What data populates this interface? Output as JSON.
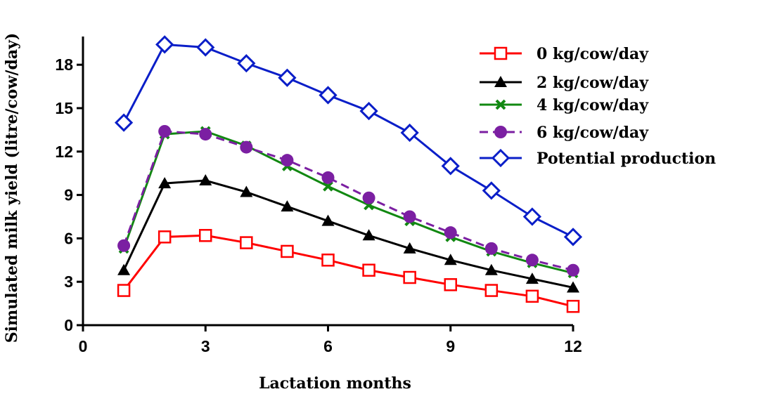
{
  "chart_data": {
    "type": "line",
    "xlabel": "Lactation months",
    "ylabel": "Simulated milk yield (litre/cow/day)",
    "xlim": [
      0,
      12
    ],
    "ylim": [
      0,
      20
    ],
    "x_ticks": [
      "0",
      "3",
      "6",
      "9",
      "12"
    ],
    "y_ticks": [
      "0",
      "3",
      "6",
      "9",
      "12",
      "15",
      "18"
    ],
    "x": [
      1,
      2,
      3,
      4,
      5,
      6,
      7,
      8,
      9,
      10,
      11,
      12
    ],
    "grid": false,
    "legend_position": "top-right",
    "series": [
      {
        "name": "0 kg/cow/day",
        "color": "#ff0000",
        "marker": "square-open",
        "dash": false,
        "values": [
          2.4,
          6.1,
          6.2,
          5.7,
          5.1,
          4.5,
          3.8,
          3.3,
          2.8,
          2.4,
          2.0,
          1.3
        ]
      },
      {
        "name": "2 kg/cow/day",
        "color": "#000000",
        "marker": "triangle",
        "dash": false,
        "values": [
          3.8,
          9.8,
          10.0,
          9.2,
          8.2,
          7.2,
          6.2,
          5.3,
          4.5,
          3.8,
          3.2,
          2.6
        ]
      },
      {
        "name": "4 kg/cow/day",
        "color": "#118811",
        "marker": "x",
        "dash": false,
        "values": [
          5.3,
          13.2,
          13.4,
          12.4,
          11.0,
          9.6,
          8.3,
          7.2,
          6.1,
          5.1,
          4.3,
          3.6
        ]
      },
      {
        "name": "6 kg/cow/day",
        "color": "#7b1fa2",
        "marker": "circle",
        "dash": true,
        "values": [
          5.5,
          13.4,
          13.2,
          12.3,
          11.4,
          10.2,
          8.8,
          7.5,
          6.4,
          5.3,
          4.5,
          3.8
        ]
      },
      {
        "name": "Potential production",
        "color": "#0a1ec8",
        "marker": "diamond-open",
        "dash": false,
        "values": [
          14.0,
          19.4,
          19.2,
          18.1,
          17.1,
          15.9,
          14.8,
          13.3,
          11.0,
          9.3,
          7.5,
          6.1
        ]
      }
    ]
  }
}
